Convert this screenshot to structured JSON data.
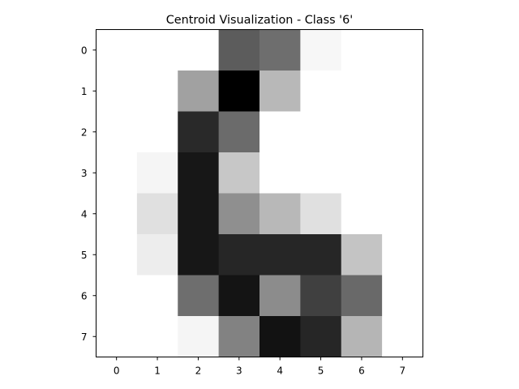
{
  "chart_data": {
    "type": "heatmap",
    "title": "Centroid Visualization - Class '6'",
    "xlabel": "",
    "ylabel": "",
    "colormap": "gray_r",
    "value_range": [
      0,
      1
    ],
    "x_ticks": [
      "0",
      "1",
      "2",
      "3",
      "4",
      "5",
      "6",
      "7"
    ],
    "y_ticks": [
      "0",
      "1",
      "2",
      "3",
      "4",
      "5",
      "6",
      "7"
    ],
    "grid": false,
    "values": [
      [
        0.0,
        0.0,
        0.0,
        0.64,
        0.57,
        0.03,
        0.0,
        0.0
      ],
      [
        0.0,
        0.0,
        0.37,
        1.0,
        0.28,
        0.0,
        0.0,
        0.0
      ],
      [
        0.0,
        0.0,
        0.84,
        0.58,
        0.0,
        0.0,
        0.0,
        0.0
      ],
      [
        0.0,
        0.04,
        0.91,
        0.22,
        0.0,
        0.0,
        0.0,
        0.0
      ],
      [
        0.0,
        0.12,
        0.91,
        0.44,
        0.28,
        0.12,
        0.0,
        0.0
      ],
      [
        0.0,
        0.07,
        0.91,
        0.85,
        0.85,
        0.85,
        0.23,
        0.0
      ],
      [
        0.0,
        0.0,
        0.57,
        0.92,
        0.45,
        0.75,
        0.59,
        0.0
      ],
      [
        0.0,
        0.0,
        0.04,
        0.49,
        0.93,
        0.85,
        0.29,
        0.0
      ]
    ]
  }
}
